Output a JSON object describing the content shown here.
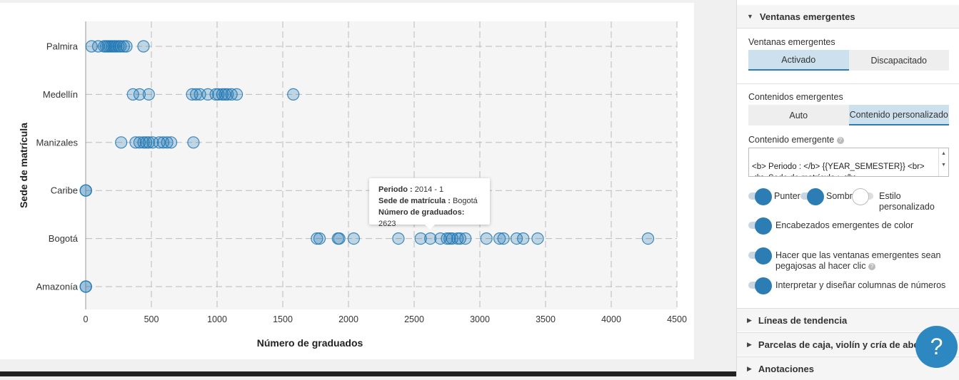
{
  "chart_data": {
    "type": "scatter",
    "xlabel": "Número de graduados",
    "ylabel": "Sede de matrícula",
    "xlim": [
      0,
      4500
    ],
    "xticks": [
      "0",
      "500",
      "1000",
      "1500",
      "2000",
      "2500",
      "3000",
      "3500",
      "4000",
      "4500"
    ],
    "categories": [
      "Palmira",
      "Medellín",
      "Manizales",
      "Caribe",
      "Bogotá",
      "Amazonía"
    ],
    "grid": true,
    "series": [
      {
        "category": "Palmira",
        "values": [
          45,
          95,
          140,
          155,
          170,
          185,
          200,
          215,
          230,
          250,
          265,
          290,
          310,
          440
        ]
      },
      {
        "category": "Medellín",
        "values": [
          360,
          410,
          480,
          810,
          840,
          870,
          930,
          990,
          1010,
          1040,
          1060,
          1080,
          1110,
          1150,
          1580
        ]
      },
      {
        "category": "Manizales",
        "values": [
          270,
          380,
          410,
          440,
          460,
          480,
          510,
          560,
          590,
          620,
          650,
          820
        ]
      },
      {
        "category": "Caribe",
        "values": [
          0,
          2
        ]
      },
      {
        "category": "Bogotá",
        "values": [
          1760,
          1780,
          1920,
          1930,
          2040,
          2380,
          2550,
          2623,
          2700,
          2750,
          2770,
          2790,
          2830,
          2850,
          2890,
          3050,
          3150,
          3180,
          3280,
          3330,
          3440,
          4280
        ]
      },
      {
        "category": "Amazonía",
        "values": [
          0,
          2
        ]
      }
    ],
    "colors": {
      "marker": "#1f77b4",
      "plot_bg": "#f5f5f5",
      "grid": "#bbbbbb"
    }
  },
  "tooltip": {
    "row1_label": "Periodo :",
    "row1_value": "2014 - 1",
    "row2_label": "Sede de matrícula :",
    "row2_value": "Bogotá",
    "row3_label": "Número de graduados:",
    "row3_value": "2623"
  },
  "panel": {
    "section_title": "Ventanas emergentes",
    "popups_label": "Ventanas emergentes",
    "popups_options": [
      "Activado",
      "Discapacitado"
    ],
    "popups_selected": "Activado",
    "contents_label": "Contenidos emergentes",
    "contents_options": [
      "Auto",
      "Contenido personalizado"
    ],
    "contents_selected": "Contenido personalizado",
    "popup_content_label": "Contenido emergente",
    "popup_content_value": "<b> Periodo : </b> {{YEAR_SEMESTER}} <br>\n<b> Sede de matrícula : </b>",
    "toggles": {
      "pointer": "Punter",
      "shadow": "Sombr",
      "custom_style": "Estilo personalizado",
      "colored_headers": "Encabezados emergentes de color",
      "sticky": "Hacer que las ventanas emergentes sean pegajosas al hacer clic",
      "parse_numbers": "Interpretar y diseñar columnas de números"
    },
    "collapsed_sections": [
      "Líneas de tendencia",
      "Parcelas de caja, violín y cría de abejas",
      "Anotaciones"
    ]
  },
  "help_button": "?",
  "icons": {
    "caret_down": "caret-down-icon",
    "caret_right": "caret-right-icon",
    "help": "help-icon"
  },
  "colors": {
    "accent": "#2d7db5",
    "help_button": "#2d88c1"
  }
}
